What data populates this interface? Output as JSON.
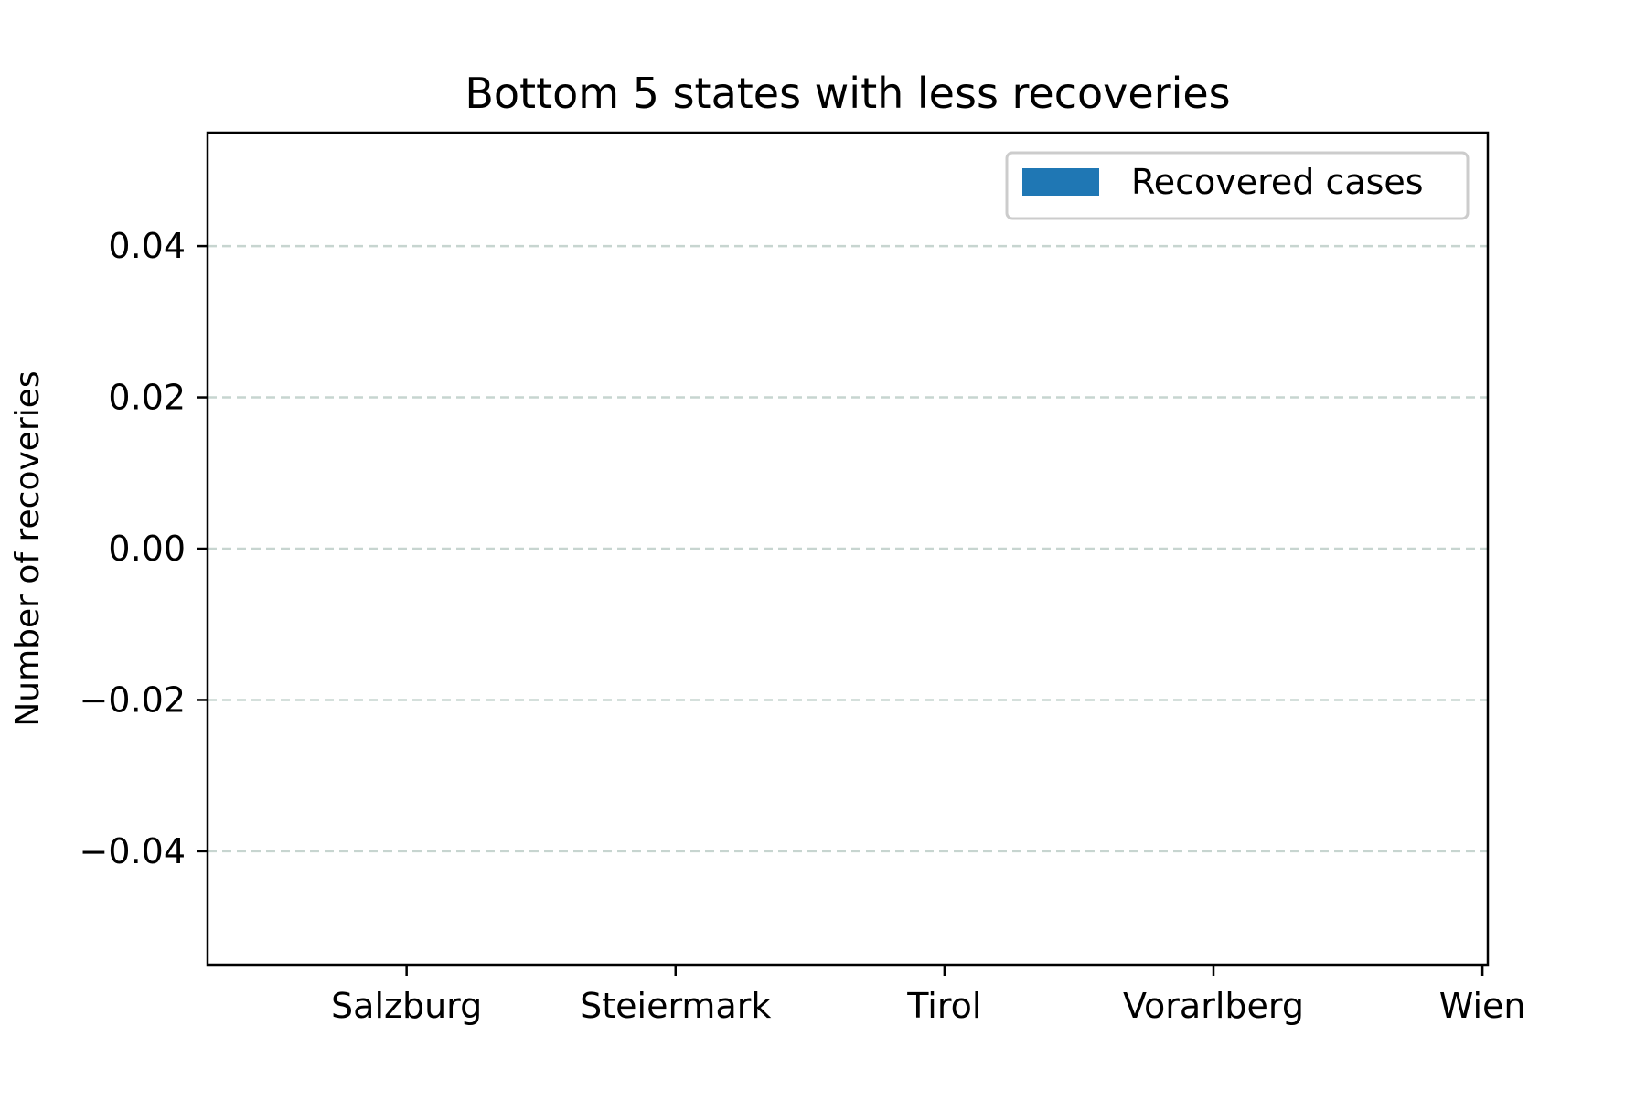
{
  "chart_data": {
    "type": "bar",
    "title": "Bottom 5 states with less recoveries",
    "xlabel": "",
    "ylabel": "Number of recoveries",
    "categories": [
      "Salzburg",
      "Steiermark",
      "Tirol",
      "Vorarlberg",
      "Wien"
    ],
    "series": [
      {
        "name": "Recovered cases",
        "values": [
          0,
          0,
          0,
          0,
          0
        ],
        "color": "#1f77b4"
      }
    ],
    "ylim": [
      -0.055,
      0.055
    ],
    "yticks": [
      -0.04,
      -0.02,
      0.0,
      0.02,
      0.04
    ],
    "ytick_labels": [
      "−0.04",
      "−0.02",
      "0.00",
      "0.02",
      "0.04"
    ],
    "grid": "y-dashed",
    "grid_color": "#c7d5d0",
    "legend_position": "top-right"
  }
}
